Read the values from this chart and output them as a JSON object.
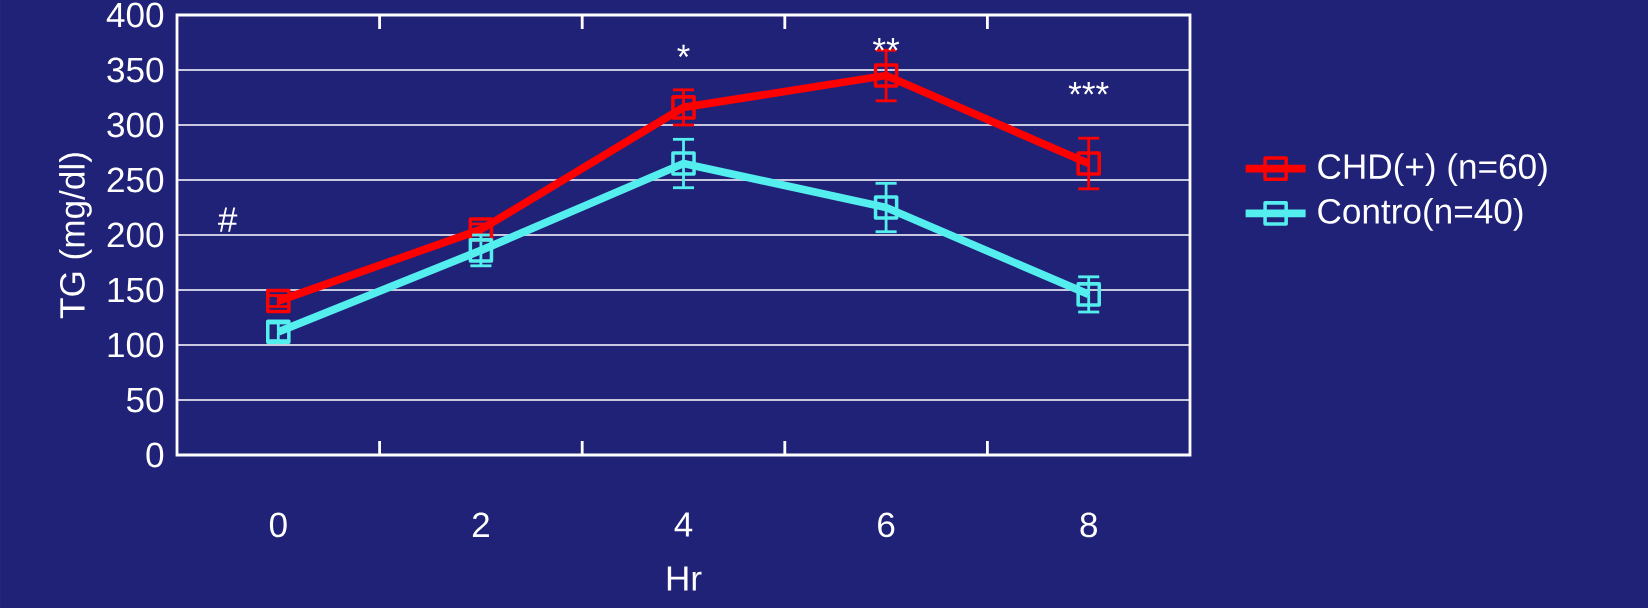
{
  "chart_data": {
    "type": "line",
    "xlabel": "Hr",
    "ylabel": "TG (mg/dl)",
    "categories": [
      "0",
      "2",
      "4",
      "6",
      "8"
    ],
    "series": [
      {
        "name": "CHD(+) (n=60)",
        "color": "#ff0000",
        "values": [
          140,
          205,
          316,
          345,
          265
        ],
        "errors": [
          5,
          5,
          16,
          23,
          23
        ]
      },
      {
        "name": "Contro(n=40)",
        "color": "#55eeee",
        "values": [
          112,
          186,
          265,
          225,
          146
        ],
        "errors": [
          8,
          14,
          22,
          22,
          16
        ]
      }
    ],
    "ylim": [
      0,
      400
    ],
    "yticks": [
      0,
      50,
      100,
      150,
      200,
      250,
      300,
      350,
      400
    ],
    "grid": "y",
    "legend": "right",
    "marker": "square",
    "line_style": "solid",
    "annotations": [
      "#",
      "*",
      "**",
      "***"
    ]
  }
}
